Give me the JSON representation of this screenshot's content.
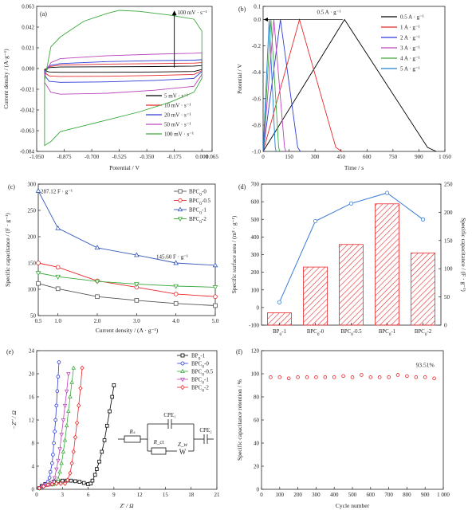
{
  "figure": {
    "background": "#ffffff",
    "axis_color": "#222222",
    "panel_letters": [
      "(a)",
      "(b)",
      "(c)",
      "(d)",
      "(e)",
      "(f)"
    ]
  },
  "chart_data": [
    {
      "panel": "(a)",
      "type": "line",
      "xlabel": "Potential / V",
      "ylabel": "Current density / (A·g⁻¹)",
      "xlim": [
        -1.05,
        0.065
      ],
      "ylim": [
        -0.084,
        0.063
      ],
      "xticks": [
        -1.05,
        -0.875,
        -0.7,
        -0.525,
        -0.35,
        -0.175,
        0.0,
        0.065
      ],
      "xtick_labels": [
        "-1.050",
        "-0.875",
        "-0.700",
        "-0.525",
        "-0.350",
        "-0.175",
        "0.000",
        "0.065"
      ],
      "yticks": [
        -0.084,
        -0.063,
        -0.042,
        -0.021,
        0.0,
        0.021,
        0.042,
        0.063
      ],
      "ytick_labels": [
        "-0.084",
        "-0.063",
        "-0.042",
        "-0.021",
        "0.000",
        "0.021",
        "0.042",
        "0.063"
      ],
      "annotation": "100 mV · s⁻¹",
      "legend_position": "bottom-right",
      "grid": false,
      "series": [
        {
          "name": "5 mV · s⁻¹",
          "color": "#000000",
          "upper": [
            [
              -1.0,
              -0.001
            ],
            [
              -0.97,
              0.001
            ],
            [
              -0.9,
              0.0015
            ],
            [
              -0.6,
              0.0018
            ],
            [
              -0.3,
              0.002
            ],
            [
              -0.05,
              0.0025
            ],
            [
              0.0,
              0.003
            ]
          ],
          "lower": [
            [
              -1.0,
              -0.002
            ],
            [
              -0.97,
              -0.0035
            ],
            [
              -0.9,
              -0.0038
            ],
            [
              -0.6,
              -0.0038
            ],
            [
              -0.3,
              -0.0035
            ],
            [
              -0.05,
              -0.003
            ],
            [
              0.0,
              -0.001
            ]
          ]
        },
        {
          "name": "10 mV · s⁻¹",
          "color": "#e8282b",
          "upper": [
            [
              -1.0,
              -0.002
            ],
            [
              -0.97,
              0.002
            ],
            [
              -0.9,
              0.0035
            ],
            [
              -0.6,
              0.0045
            ],
            [
              -0.3,
              0.005
            ],
            [
              -0.05,
              0.0055
            ],
            [
              0.0,
              0.006
            ]
          ],
          "lower": [
            [
              -1.0,
              -0.004
            ],
            [
              -0.97,
              -0.0075
            ],
            [
              -0.9,
              -0.008
            ],
            [
              -0.6,
              -0.0078
            ],
            [
              -0.3,
              -0.007
            ],
            [
              -0.05,
              -0.006
            ],
            [
              0.0,
              -0.002
            ]
          ]
        },
        {
          "name": "20 mV · s⁻¹",
          "color": "#2d3bd9",
          "upper": [
            [
              -1.0,
              -0.003
            ],
            [
              -0.97,
              0.003
            ],
            [
              -0.9,
              0.005
            ],
            [
              -0.6,
              0.007
            ],
            [
              -0.3,
              0.008
            ],
            [
              -0.05,
              0.0085
            ],
            [
              0.0,
              0.009
            ]
          ],
          "lower": [
            [
              -1.0,
              -0.007
            ],
            [
              -0.97,
              -0.013
            ],
            [
              -0.9,
              -0.014
            ],
            [
              -0.6,
              -0.0135
            ],
            [
              -0.3,
              -0.012
            ],
            [
              -0.05,
              -0.01
            ],
            [
              0.0,
              -0.003
            ]
          ]
        },
        {
          "name": "50 mV · s⁻¹",
          "color": "#bb44bb",
          "upper": [
            [
              -1.0,
              -0.006
            ],
            [
              -0.96,
              0.006
            ],
            [
              -0.9,
              0.01
            ],
            [
              -0.6,
              0.013
            ],
            [
              -0.3,
              0.0145
            ],
            [
              -0.05,
              0.0155
            ],
            [
              0.0,
              0.016
            ]
          ],
          "lower": [
            [
              -1.0,
              -0.014
            ],
            [
              -0.96,
              -0.024
            ],
            [
              -0.9,
              -0.026
            ],
            [
              -0.6,
              -0.025
            ],
            [
              -0.3,
              -0.022
            ],
            [
              -0.05,
              -0.018
            ],
            [
              0.0,
              -0.006
            ]
          ]
        },
        {
          "name": "100 mV · s⁻¹",
          "color": "#3aaa3a",
          "upper": [
            [
              -1.0,
              -0.012
            ],
            [
              -0.96,
              0.022
            ],
            [
              -0.9,
              0.032
            ],
            [
              -0.75,
              0.048
            ],
            [
              -0.6,
              0.056
            ],
            [
              -0.525,
              0.059
            ],
            [
              -0.4,
              0.058
            ],
            [
              -0.2,
              0.054
            ],
            [
              -0.05,
              0.05
            ],
            [
              0.0,
              0.038
            ]
          ],
          "lower": [
            [
              -1.0,
              -0.078
            ],
            [
              -0.96,
              -0.074
            ],
            [
              -0.9,
              -0.064
            ],
            [
              -0.75,
              -0.058
            ],
            [
              -0.6,
              -0.052
            ],
            [
              -0.4,
              -0.044
            ],
            [
              -0.2,
              -0.034
            ],
            [
              -0.05,
              -0.024
            ],
            [
              0.0,
              -0.01
            ]
          ]
        }
      ]
    },
    {
      "panel": "(b)",
      "type": "line",
      "xlabel": "Time / s",
      "ylabel": "Potential / V",
      "xlim": [
        0,
        1050
      ],
      "ylim": [
        -1.0,
        0.1
      ],
      "xticks": [
        0,
        150,
        300,
        450,
        600,
        750,
        900,
        1050
      ],
      "xtick_labels": [
        "0",
        "150",
        "300",
        "450",
        "600",
        "750",
        "900",
        "1 050"
      ],
      "yticks": [
        -1.0,
        -0.8,
        -0.6,
        -0.4,
        -0.2,
        0.0,
        0.1
      ],
      "ytick_labels": [
        "-1.0",
        "-0.8",
        "-0.6",
        "-0.4",
        "-0.2",
        "0.0",
        "0.1"
      ],
      "annotation": "0.5 A · g⁻¹",
      "legend_position": "right",
      "grid": false,
      "series": [
        {
          "name": "0.5 A · g⁻¹",
          "color": "#000000",
          "x": [
            0,
            470,
            950,
            1000
          ],
          "y": [
            -1.0,
            0.0,
            -0.97,
            -1.0
          ]
        },
        {
          "name": "1 A · g⁻¹",
          "color": "#e8282b",
          "x": [
            0,
            210,
            420,
            455
          ],
          "y": [
            -1.0,
            0.0,
            -0.97,
            -1.0
          ]
        },
        {
          "name": "2 A · g⁻¹",
          "color": "#2d3bd9",
          "x": [
            0,
            100,
            200,
            215
          ],
          "y": [
            -1.0,
            0.0,
            -0.97,
            -1.0
          ]
        },
        {
          "name": "3 A · g⁻¹",
          "color": "#bb44bb",
          "x": [
            0,
            62,
            124,
            132
          ],
          "y": [
            -1.0,
            0.0,
            -0.97,
            -1.0
          ]
        },
        {
          "name": "4 A · g⁻¹",
          "color": "#3aaa3a",
          "x": [
            0,
            45,
            90,
            96
          ],
          "y": [
            -1.0,
            0.0,
            -0.97,
            -1.0
          ]
        },
        {
          "name": "5 A · g⁻¹",
          "color": "#1f7fd0",
          "x": [
            0,
            35,
            70,
            75
          ],
          "y": [
            -1.0,
            0.0,
            -0.97,
            -1.0
          ]
        }
      ]
    },
    {
      "panel": "(c)",
      "type": "line",
      "xlabel": "Current density / (A · g⁻¹)",
      "ylabel": "Specific capacitance / (F · g⁻¹)",
      "xlim": [
        0.5,
        5.0
      ],
      "ylim": [
        50,
        300
      ],
      "xticks": [
        0.5,
        1.0,
        2.0,
        3.0,
        4.0,
        5.0
      ],
      "xtick_labels": [
        "0.5",
        "1.0",
        "2.0",
        "3.0",
        "4.0",
        "5.0"
      ],
      "yticks": [
        50,
        100,
        150,
        200,
        250,
        300
      ],
      "ytick_labels": [
        "50",
        "100",
        "150",
        "200",
        "250",
        "300"
      ],
      "annotations": [
        "287.12 F · g⁻¹",
        "145.60 F · g⁻¹"
      ],
      "legend_position": "top-right",
      "grid": false,
      "x": [
        0.5,
        1.0,
        2.0,
        3.0,
        4.0,
        5.0
      ],
      "series": [
        {
          "name": "BPC₀-0",
          "sub": "0",
          "suffix": "-0",
          "color": "#555555",
          "marker": "square",
          "values": [
            111,
            101,
            86,
            79,
            73,
            69
          ]
        },
        {
          "name": "BPC₀-0.5",
          "sub": "0",
          "suffix": "-0.5",
          "color": "#e8282b",
          "marker": "circle",
          "values": [
            150,
            142,
            116,
            104,
            91,
            86
          ]
        },
        {
          "name": "BPC₀-1",
          "sub": "0",
          "suffix": "-1",
          "color": "#3558b8",
          "marker": "triangle-up",
          "values": [
            287.12,
            216,
            179,
            165,
            150,
            145.6
          ]
        },
        {
          "name": "BPC₀-2",
          "sub": "0",
          "suffix": "-2",
          "color": "#3aaa3a",
          "marker": "triangle-down",
          "values": [
            131,
            124,
            115,
            110,
            106,
            104
          ]
        }
      ]
    },
    {
      "panel": "(d)",
      "type": "bar",
      "categories": [
        "BP₀-1",
        "BPC₀-0",
        "BPC₀-0.5",
        "BPC₀-1",
        "BPC₀-2"
      ],
      "category_parts": [
        [
          "BP",
          "0",
          "-1"
        ],
        [
          "BPC",
          "0",
          "-0"
        ],
        [
          "BPC",
          "0",
          "-0.5"
        ],
        [
          "BPC",
          "0",
          "-1"
        ],
        [
          "BPC",
          "0",
          "-2"
        ]
      ],
      "ylabel_left": "Specific surface area / (m² · g⁻¹)",
      "ylabel_right": "Specific capacitance / (F · g⁻¹)",
      "ylim_left": [
        -100,
        700
      ],
      "ylim_right": [
        0,
        250
      ],
      "yticks_left": [
        -100,
        0,
        100,
        200,
        300,
        400,
        500,
        600,
        700
      ],
      "yticks_right": [
        0,
        50,
        100,
        150,
        200,
        250
      ],
      "left_color": "#3a7bd5",
      "right_color": "#e8282b",
      "grid": false,
      "series": [
        {
          "name": "Specific surface area",
          "axis": "left",
          "type": "line",
          "values": [
            30,
            490,
            590,
            650,
            500
          ]
        },
        {
          "name": "Specific capacitance",
          "axis": "right",
          "type": "bar",
          "values": [
            22,
            103,
            143,
            215,
            128
          ]
        }
      ]
    },
    {
      "panel": "(e)",
      "type": "scatter",
      "xlabel": "Z′ / Ω",
      "ylabel": "−Z″ / Ω",
      "xlim": [
        0,
        21
      ],
      "ylim": [
        0,
        24
      ],
      "xticks": [
        0,
        3,
        6,
        9,
        12,
        15,
        18,
        21
      ],
      "yticks": [
        0,
        4,
        8,
        12,
        16,
        20,
        24
      ],
      "legend_position": "top-right",
      "grid": false,
      "inset_labels": [
        "Rₛ",
        "CPE₁",
        "R_ct",
        "Z_w",
        "CPE₂",
        "W"
      ],
      "series": [
        {
          "name": "BP₀-1",
          "color": "#000000",
          "marker": "square",
          "x": [
            0.3,
            0.6,
            1.0,
            1.5,
            2.0,
            2.5,
            3.0,
            3.5,
            4.0,
            4.5,
            5.0,
            5.5,
            6.0,
            6.3,
            6.5,
            6.8,
            7.0,
            7.3,
            7.6,
            7.9,
            8.2,
            8.5,
            8.8,
            9.0
          ],
          "y": [
            0.2,
            0.6,
            0.9,
            1.1,
            1.3,
            1.4,
            1.5,
            1.5,
            1.5,
            1.4,
            1.3,
            1.1,
            0.9,
            1.0,
            1.5,
            2.5,
            3.5,
            4.8,
            6.5,
            8.5,
            11,
            13.5,
            16,
            18
          ]
        },
        {
          "name": "BPC₀-0",
          "color": "#2d3bd9",
          "marker": "circle",
          "x": [
            0.3,
            0.6,
            0.9,
            1.1,
            1.3,
            1.5,
            1.6,
            1.8,
            1.9,
            2.0,
            2.1,
            2.2,
            2.3,
            2.4,
            2.5,
            2.6
          ],
          "y": [
            0.2,
            0.4,
            0.7,
            0.9,
            1.3,
            2,
            3,
            4.5,
            6,
            8,
            10,
            12,
            14.5,
            17,
            19.5,
            22
          ]
        },
        {
          "name": "BPC₀-0.5",
          "color": "#3aaa3a",
          "marker": "triangle-up",
          "x": [
            0.3,
            0.7,
            1.1,
            1.5,
            1.9,
            2.2,
            2.5,
            2.7,
            2.9,
            3.1,
            3.3,
            3.5,
            3.7,
            3.9,
            4.1,
            4.3
          ],
          "y": [
            0.2,
            0.5,
            0.7,
            0.8,
            0.8,
            1.0,
            1.8,
            3,
            4.5,
            6.5,
            8.5,
            11,
            13.5,
            16,
            18.5,
            21
          ]
        },
        {
          "name": "BPC₀-1",
          "color": "#bb44bb",
          "marker": "triangle-down",
          "x": [
            0.3,
            0.7,
            1.1,
            1.5,
            1.8,
            2.1,
            2.3,
            2.5,
            2.7,
            2.9,
            3.1,
            3.3,
            3.5,
            3.7
          ],
          "y": [
            0.2,
            0.5,
            0.7,
            0.8,
            1.2,
            2,
            3.5,
            5,
            7,
            9.5,
            12,
            14.5,
            17,
            20
          ]
        },
        {
          "name": "BPC₀-2",
          "color": "#e8282b",
          "marker": "diamond",
          "x": [
            0.3,
            0.8,
            1.3,
            1.8,
            2.3,
            2.8,
            3.3,
            3.6,
            3.9,
            4.1,
            4.3,
            4.5,
            4.7,
            4.9,
            5.1,
            5.3
          ],
          "y": [
            0.2,
            0.5,
            0.8,
            0.9,
            1.0,
            1.0,
            1.0,
            1.6,
            2.8,
            4.5,
            6.5,
            9,
            11.5,
            14.5,
            17.5,
            21
          ]
        }
      ]
    },
    {
      "panel": "(f)",
      "type": "scatter",
      "xlabel": "Cycle number",
      "ylabel": "Specific capacitance retention / %",
      "xlim": [
        0,
        1000
      ],
      "ylim": [
        0,
        120
      ],
      "xticks": [
        0,
        100,
        200,
        300,
        400,
        500,
        600,
        700,
        800,
        900,
        1000
      ],
      "xtick_labels": [
        "0",
        "100",
        "200",
        "300",
        "400",
        "500",
        "600",
        "700",
        "800",
        "900",
        "1 000"
      ],
      "yticks": [
        0,
        20,
        40,
        60,
        80,
        100,
        120
      ],
      "annotation": "93.51%",
      "color": "#e8282b",
      "marker": "circle",
      "grid": false,
      "x": [
        50,
        100,
        150,
        200,
        250,
        300,
        350,
        400,
        450,
        500,
        550,
        600,
        650,
        700,
        750,
        800,
        850,
        900,
        950
      ],
      "y": [
        97,
        97,
        96,
        97,
        97,
        97,
        97,
        97,
        98,
        97,
        99,
        97,
        97,
        97,
        99,
        98,
        97,
        97,
        96
      ]
    }
  ]
}
